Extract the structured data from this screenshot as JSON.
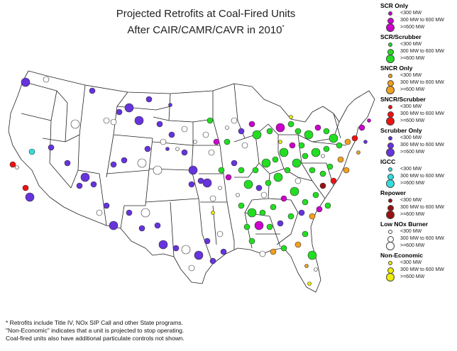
{
  "title": {
    "line1": "Projected Retrofits at Coal-Fired Units",
    "line2": "After CAIR/CAMR/CAVR in 2010",
    "marker": "*"
  },
  "footnote": {
    "line1": "* Retrofits include Title IV, NOx SIP Call and other State programs.",
    "line2": "\"Non-Economic\" indicates that a unit is projected to stop operating.",
    "line3": "Coal-fired units also have additional particulate controls not shown."
  },
  "legend": [
    {
      "id": "scr-only",
      "title": "SCR Only",
      "color": "#cc00cc",
      "sizes": [
        "<300 MW",
        "300 MW to 600 MW",
        ">=600 MW"
      ]
    },
    {
      "id": "scr-scrubber",
      "title": "SCR/Scrubber",
      "color": "#22dd22",
      "sizes": [
        "<300 MW",
        "300 MW to 600 MW",
        ">=600 MW"
      ]
    },
    {
      "id": "sncr-only",
      "title": "SNCR Only",
      "color": "#f0a020",
      "sizes": [
        "<300 MW",
        "300 MW to 600 MW",
        ">=600 MW"
      ]
    },
    {
      "id": "sncr-scrubber",
      "title": "SNCR/Scrubber",
      "color": "#ee1111",
      "sizes": [
        "<300 MW",
        "300 MW to 600 MW",
        ">=600 MW"
      ]
    },
    {
      "id": "scrubber-only",
      "title": "Scrubber Only",
      "color": "#6633dd",
      "sizes": [
        "<300 MW",
        "300 MW to 600 MW",
        ">=600 MW"
      ]
    },
    {
      "id": "igcc",
      "title": "IGCC",
      "color": "#33dddd",
      "sizes": [
        "<300 MW",
        "300 MW to 600 MW",
        ">=600 MW"
      ]
    },
    {
      "id": "repower",
      "title": "Repower",
      "color": "#991111",
      "sizes": [
        "<300 MW",
        "300 MW to 600 MW",
        ">=600 MW"
      ]
    },
    {
      "id": "low-nox",
      "title": "Low NOx Burner",
      "color": "#ffffff",
      "sizes": [
        "<300 MW",
        "300 MW to 600 MW",
        ">=600 MW"
      ]
    },
    {
      "id": "non-economic",
      "title": "Non-Economic",
      "color": "#eeee00",
      "sizes": [
        "<300 MW",
        "300 MW to 600 MW",
        ">=600 MW"
      ]
    }
  ],
  "colors": {
    "map_fill": "#ffffff",
    "state_border": "#222222"
  }
}
